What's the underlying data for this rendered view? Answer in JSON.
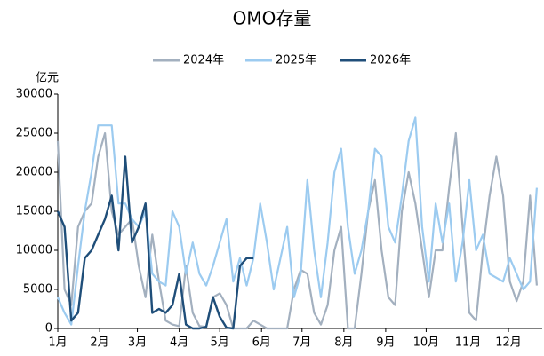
{
  "chart_data": {
    "type": "line",
    "title": "OMO存量",
    "y_label": "亿元",
    "x": [
      1,
      6,
      11,
      16,
      21,
      26,
      31,
      36,
      41,
      46,
      51,
      56,
      61,
      66,
      71,
      76,
      81,
      86,
      91,
      96,
      101,
      106,
      111,
      116,
      121,
      126,
      131,
      136,
      141,
      146,
      151,
      156,
      161,
      166,
      171,
      176,
      181,
      186,
      191,
      196,
      201,
      206,
      211,
      216,
      221,
      226,
      231,
      236,
      241,
      246,
      251,
      256,
      261,
      266,
      271,
      276,
      281,
      286,
      291,
      296,
      301,
      306,
      311,
      316,
      321,
      326,
      331,
      336,
      341,
      346,
      351,
      356
    ],
    "xlim": [
      1,
      360
    ],
    "xticks": [
      {
        "value": 1,
        "label": "1月"
      },
      {
        "value": 32,
        "label": "2月"
      },
      {
        "value": 60,
        "label": "3月"
      },
      {
        "value": 91,
        "label": "4月"
      },
      {
        "value": 121,
        "label": "5月"
      },
      {
        "value": 152,
        "label": "6月"
      },
      {
        "value": 182,
        "label": "7月"
      },
      {
        "value": 213,
        "label": "8月"
      },
      {
        "value": 244,
        "label": "9月"
      },
      {
        "value": 274,
        "label": "10月"
      },
      {
        "value": 305,
        "label": "11月"
      },
      {
        "value": 335,
        "label": "12月"
      }
    ],
    "ylim": [
      0,
      30000
    ],
    "yticks": [
      0,
      5000,
      10000,
      15000,
      20000,
      25000,
      30000
    ],
    "legend": "top",
    "series": [
      {
        "name": "2024年",
        "color": "#a3b0bf",
        "values": [
          24000,
          5000,
          3000,
          13000,
          15000,
          16000,
          22000,
          25000,
          15000,
          12000,
          13000,
          14000,
          8000,
          4000,
          12000,
          6000,
          1000,
          500,
          300,
          8000,
          2000,
          300,
          200,
          4000,
          4500,
          3000,
          0,
          0,
          0,
          1000,
          500,
          0,
          0,
          0,
          0,
          5000,
          7500,
          7000,
          2000,
          500,
          3000,
          10000,
          13000,
          0,
          0,
          7000,
          15000,
          19000,
          10000,
          4000,
          3000,
          15000,
          20000,
          16000,
          10000,
          4000,
          10000,
          10000,
          18000,
          25000,
          13000,
          2000,
          1000,
          10000,
          17000,
          22000,
          17000,
          6000,
          3500,
          6000,
          17000,
          5500
        ]
      },
      {
        "name": "2025年",
        "color": "#9ccbf0",
        "values": [
          4000,
          2000,
          500,
          8000,
          15000,
          20000,
          26000,
          26000,
          26000,
          16000,
          16000,
          14000,
          13000,
          15000,
          7000,
          6000,
          5500,
          15000,
          13000,
          7000,
          11000,
          7000,
          5500,
          8000,
          11000,
          14000,
          6000,
          9000,
          5500,
          9000,
          16000,
          11000,
          5000,
          9000,
          13000,
          4000,
          7000,
          19000,
          10000,
          4000,
          11000,
          20000,
          23000,
          13000,
          7000,
          10000,
          15000,
          23000,
          22000,
          13000,
          11000,
          17000,
          24000,
          27000,
          13000,
          6000,
          16000,
          11000,
          16000,
          6000,
          11000,
          19000,
          10000,
          12000,
          7000,
          6500,
          6000,
          9000,
          7000,
          5000,
          6000,
          18000
        ]
      },
      {
        "name": "2026年",
        "color": "#1f4e79",
        "values": [
          15000,
          13000,
          1000,
          2000,
          9000,
          10000,
          12000,
          14000,
          17000,
          10000,
          22000,
          11000,
          13000,
          16000,
          2000,
          2500,
          2000,
          3000,
          7000,
          500,
          0,
          0,
          200,
          4000,
          1500,
          100,
          0,
          8000,
          9000,
          9000,
          null,
          null,
          null,
          null,
          null,
          null,
          null,
          null,
          null,
          null,
          null,
          null,
          null,
          null,
          null,
          null,
          null,
          null,
          null,
          null,
          null,
          null,
          null,
          null,
          null,
          null,
          null,
          null,
          null,
          null,
          null,
          null,
          null,
          null,
          null,
          null,
          null,
          null,
          null,
          null,
          null,
          null
        ]
      }
    ]
  }
}
